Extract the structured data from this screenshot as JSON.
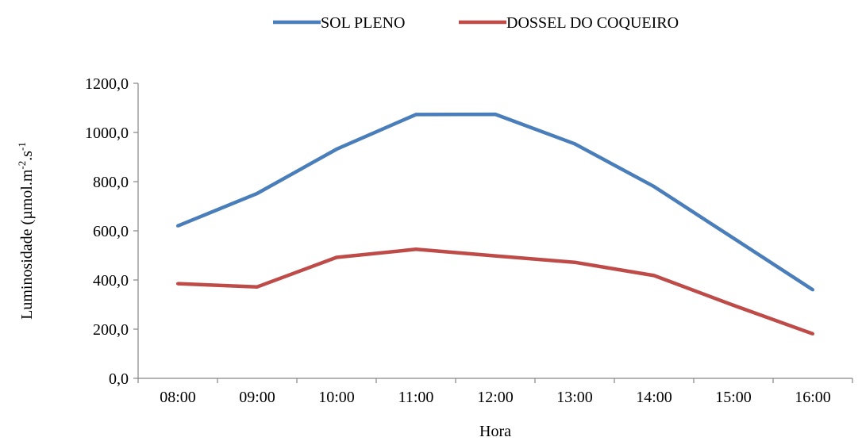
{
  "chart_data": {
    "type": "line",
    "title": "",
    "xlabel": "Hora",
    "ylabel": {
      "main": "Luminosidade (µmol.m",
      "exp1": "-2",
      "mid": ".s",
      "exp2": "-1"
    },
    "categories": [
      "08:00",
      "09:00",
      "10:00",
      "11:00",
      "12:00",
      "13:00",
      "14:00",
      "15:00",
      "16:00"
    ],
    "ylim": [
      0,
      1200
    ],
    "yticks": [
      "0,0",
      "200,0",
      "400,0",
      "600,0",
      "800,0",
      "1000,0",
      "1200,0"
    ],
    "grid": false,
    "legend_position": "top-center",
    "series": [
      {
        "name": "SOL PLENO",
        "color": "#4a7ebb",
        "values": [
          620,
          752,
          932,
          1073,
          1074,
          954,
          780,
          570,
          360
        ]
      },
      {
        "name": "DOSSEL DO COQUEIRO",
        "color": "#be4b48",
        "values": [
          385,
          372,
          492,
          525,
          498,
          472,
          418,
          297,
          181
        ]
      }
    ]
  }
}
